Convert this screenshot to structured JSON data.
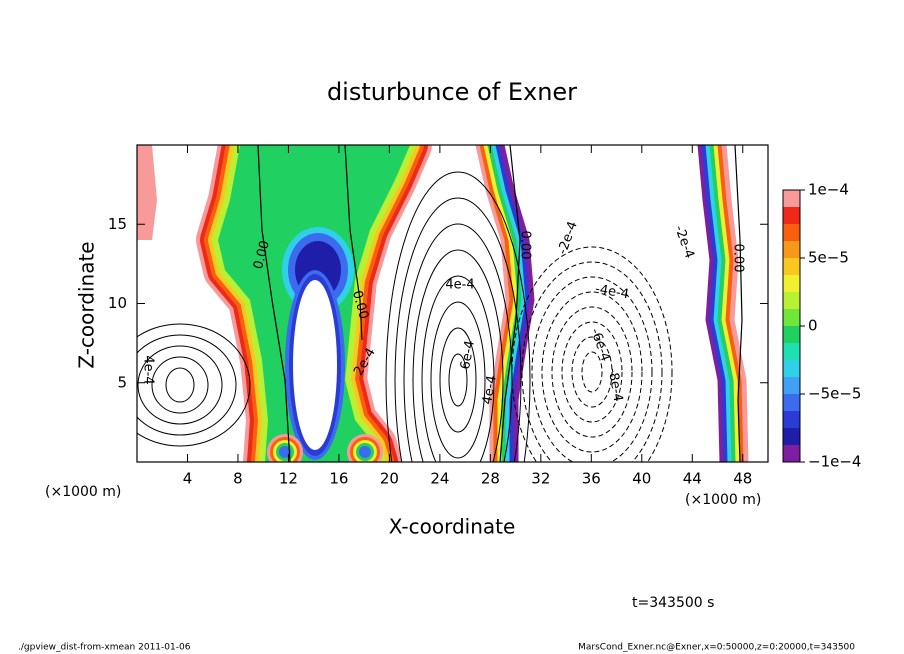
{
  "chart_data": {
    "type": "contour",
    "title": "disturbunce of Exner",
    "x_label": "X-coordinate",
    "y_label": "Z-coordinate",
    "x_unit": "(×1000 m)",
    "y_unit": "(×1000 m)",
    "xlim": [
      0,
      50
    ],
    "xticks": [
      4,
      8,
      12,
      16,
      20,
      24,
      28,
      32,
      36,
      40,
      44,
      48
    ],
    "ylim": [
      0,
      20
    ],
    "yticks": [
      5,
      10,
      15
    ],
    "colorbar": {
      "levels": [
        -0.0001,
        -8.75e-05,
        -7.5e-05,
        -6.25e-05,
        -5e-05,
        -3.75e-05,
        -2.5e-05,
        -1.25e-05,
        0,
        1.25e-05,
        2.5e-05,
        3.75e-05,
        5e-05,
        6.25e-05,
        7.5e-05,
        8.75e-05,
        0.0001
      ],
      "colors": [
        "#7d1fa0",
        "#1e1ea8",
        "#2b3bd6",
        "#3b6cf0",
        "#3fa0f5",
        "#2fd0e8",
        "#1ee0b0",
        "#20d060",
        "#6ee63a",
        "#b8f034",
        "#f0f030",
        "#f8c820",
        "#f89818",
        "#f86010",
        "#f02818",
        "#f89a9a"
      ],
      "ticks": [
        {
          "value": -0.0001,
          "label": "−1e−4"
        },
        {
          "value": -5e-05,
          "label": "−5e−5"
        },
        0,
        {
          "value": 5e-05,
          "label": "5e−5"
        },
        {
          "value": 0.0001,
          "label": "1e−4"
        }
      ]
    },
    "annotations": [
      "0.00",
      "0.00",
      "0.00",
      "0.00",
      "2e-4",
      "4e-4",
      "6e-4",
      "4e-4",
      "4e-4",
      "-2e-4",
      "-2e-4",
      "-4e-4",
      "-6e-4",
      "-8e-4"
    ],
    "time_label": "t=343500 s",
    "footer_left": "./gpview_dist-from-xmean   2011-01-06",
    "footer_right": "MarsCond_Exner.nc@Exner,x=0:50000,z=0:20000,t=343500"
  }
}
